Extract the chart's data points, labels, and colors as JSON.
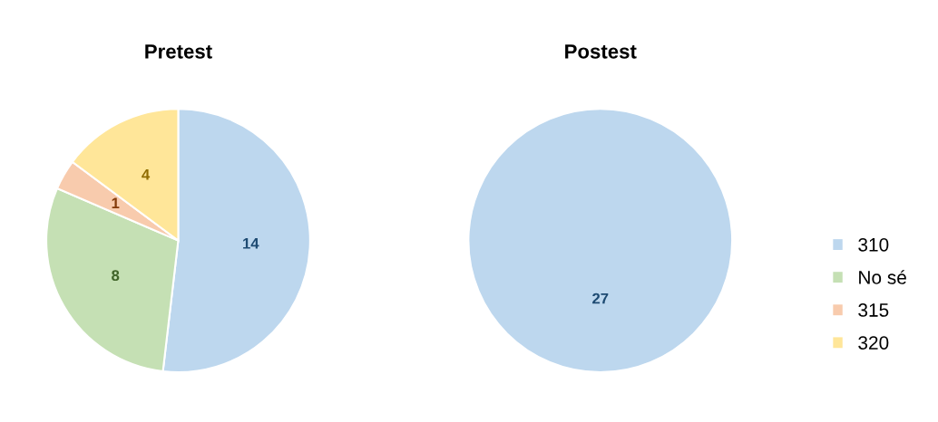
{
  "chart_data": [
    {
      "type": "pie",
      "title": "Pretest",
      "categories": [
        "310",
        "No sé",
        "315",
        "320"
      ],
      "values": [
        14,
        8,
        1,
        4
      ],
      "colors": [
        "#bdd7ee",
        "#c5e0b4",
        "#f8cbad",
        "#ffe699"
      ],
      "data_labels": true,
      "legend": "right"
    },
    {
      "type": "pie",
      "title": "Postest",
      "categories": [
        null
      ],
      "values": [
        27
      ],
      "colors": [
        "#bdd7ee"
      ],
      "data_labels": true
    }
  ]
}
